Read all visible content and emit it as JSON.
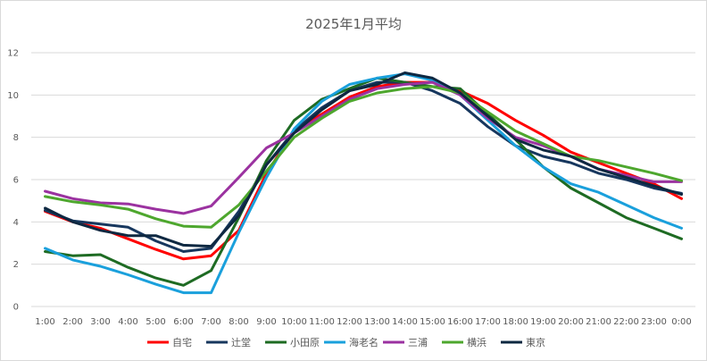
{
  "chart_data": {
    "type": "line",
    "title": "2025年1月平均",
    "xlabel": "",
    "ylabel": "",
    "ylim": [
      0,
      12
    ],
    "yticks": [
      0,
      2,
      4,
      6,
      8,
      10,
      12
    ],
    "grid": true,
    "legend_position": "bottom",
    "categories": [
      "1:00",
      "2:00",
      "3:00",
      "4:00",
      "5:00",
      "6:00",
      "7:00",
      "8:00",
      "9:00",
      "10:00",
      "11:00",
      "12:00",
      "13:00",
      "14:00",
      "15:00",
      "16:00",
      "17:00",
      "18:00",
      "19:00",
      "20:00",
      "21:00",
      "22:00",
      "23:00",
      "0:00"
    ],
    "series": [
      {
        "name": "自宅",
        "color": "#ff0000",
        "values": [
          4.5,
          4.0,
          3.7,
          3.2,
          2.7,
          2.25,
          2.4,
          3.6,
          6.3,
          8.3,
          9.1,
          9.9,
          10.4,
          10.6,
          10.6,
          10.2,
          9.6,
          8.8,
          8.1,
          7.3,
          6.8,
          6.3,
          5.8,
          5.1
        ]
      },
      {
        "name": "辻堂",
        "color": "#17375e",
        "values": [
          4.55,
          4.05,
          3.9,
          3.75,
          3.1,
          2.6,
          2.75,
          4.5,
          6.7,
          8.3,
          9.4,
          10.2,
          10.6,
          10.6,
          10.2,
          9.6,
          8.5,
          7.6,
          7.1,
          6.8,
          6.3,
          6.0,
          5.6,
          5.35
        ]
      },
      {
        "name": "小田原",
        "color": "#1e6b23",
        "values": [
          2.6,
          2.4,
          2.45,
          1.85,
          1.35,
          1.0,
          1.7,
          4.2,
          6.9,
          8.8,
          9.8,
          10.3,
          10.8,
          10.6,
          10.4,
          10.3,
          9.1,
          7.9,
          6.6,
          5.6,
          4.9,
          4.2,
          3.7,
          3.2
        ]
      },
      {
        "name": "海老名",
        "color": "#1aa0dc",
        "values": [
          2.75,
          2.2,
          1.9,
          1.5,
          1.05,
          0.65,
          0.65,
          3.5,
          6.1,
          8.4,
          9.7,
          10.5,
          10.8,
          11.0,
          10.7,
          10.0,
          8.8,
          7.6,
          6.6,
          5.8,
          5.4,
          4.8,
          4.2,
          3.7
        ]
      },
      {
        "name": "三浦",
        "color": "#9b32a0",
        "values": [
          5.45,
          5.1,
          4.9,
          4.85,
          4.6,
          4.4,
          4.75,
          6.1,
          7.5,
          8.2,
          9.0,
          9.8,
          10.3,
          10.5,
          10.6,
          10.0,
          8.9,
          8.0,
          7.6,
          7.1,
          6.5,
          6.2,
          5.9,
          5.9
        ]
      },
      {
        "name": "横浜",
        "color": "#4ea72e",
        "values": [
          5.2,
          4.95,
          4.8,
          4.6,
          4.15,
          3.8,
          3.75,
          4.8,
          6.4,
          8.0,
          8.9,
          9.7,
          10.1,
          10.3,
          10.4,
          10.1,
          9.2,
          8.3,
          7.7,
          7.1,
          6.9,
          6.6,
          6.3,
          5.95
        ]
      },
      {
        "name": "東京",
        "color": "#0e2841",
        "values": [
          4.65,
          4.0,
          3.6,
          3.35,
          3.35,
          2.9,
          2.85,
          4.3,
          6.7,
          8.2,
          9.3,
          10.2,
          10.5,
          11.05,
          10.8,
          10.1,
          9.0,
          7.9,
          7.4,
          7.1,
          6.5,
          6.1,
          5.7,
          5.3
        ]
      }
    ]
  }
}
